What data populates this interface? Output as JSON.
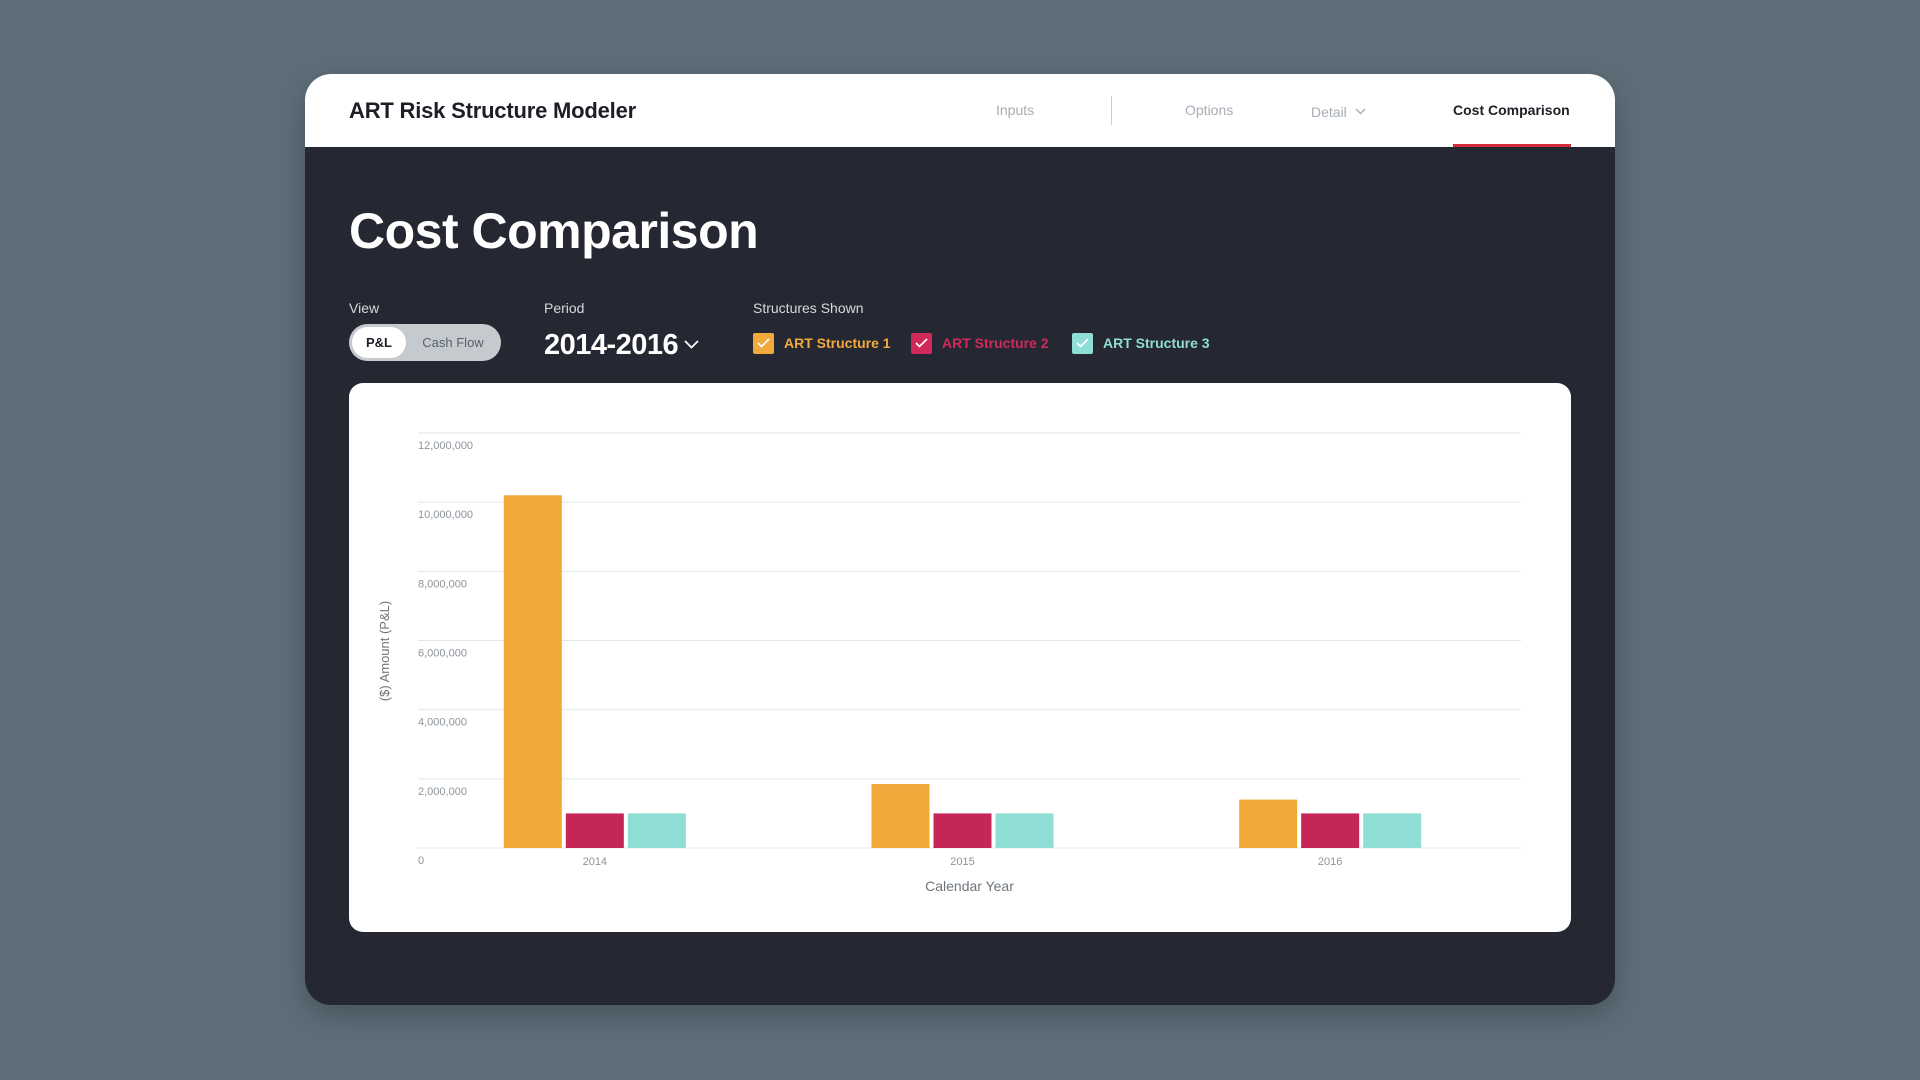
{
  "app": {
    "title": "ART Risk Structure Modeler"
  },
  "nav": {
    "inputs": "Inputs",
    "options": "Options",
    "detail": "Detail",
    "cost_comparison": "Cost Comparison"
  },
  "page": {
    "title": "Cost Comparison"
  },
  "controls": {
    "view_label": "View",
    "view_options": [
      "P&L",
      "Cash Flow"
    ],
    "view_selected": "P&L",
    "period_label": "Period",
    "period_value": "2014-2016",
    "structures_label": "Structures Shown",
    "structures": [
      {
        "name": "ART Structure 1",
        "checked": true,
        "color": "#f2a93b"
      },
      {
        "name": "ART Structure 2",
        "checked": true,
        "color": "#cf2a5a"
      },
      {
        "name": "ART Structure 3",
        "checked": true,
        "color": "#8fded6"
      }
    ]
  },
  "colors": {
    "background": "#5e6e79",
    "panel": "#252832",
    "accent": "#d52b3a"
  },
  "icons": {
    "detail_chevron": "chevron-down-icon",
    "period_chevron": "chevron-down-icon",
    "checkbox": "check-icon"
  },
  "chart_data": {
    "type": "bar",
    "categories": [
      "2014",
      "2015",
      "2016"
    ],
    "series": [
      {
        "name": "ART Structure 1",
        "color": "#f2a93b",
        "values": [
          10200000,
          1850000,
          1400000
        ]
      },
      {
        "name": "ART Structure 2",
        "color": "#c42757",
        "values": [
          1000000,
          1000000,
          1000000
        ]
      },
      {
        "name": "ART Structure 3",
        "color": "#8fded6",
        "values": [
          1000000,
          1000000,
          1000000
        ]
      }
    ],
    "yticks": [
      "0",
      "2,000,000",
      "4,000,000",
      "6,000,000",
      "8,000,000",
      "10,000,000",
      "12,000,000"
    ],
    "ylim": [
      0,
      12000000
    ],
    "xlabel": "Calendar Year",
    "ylabel": "($) Amount (P&L)",
    "grid": true,
    "legend": "top"
  }
}
